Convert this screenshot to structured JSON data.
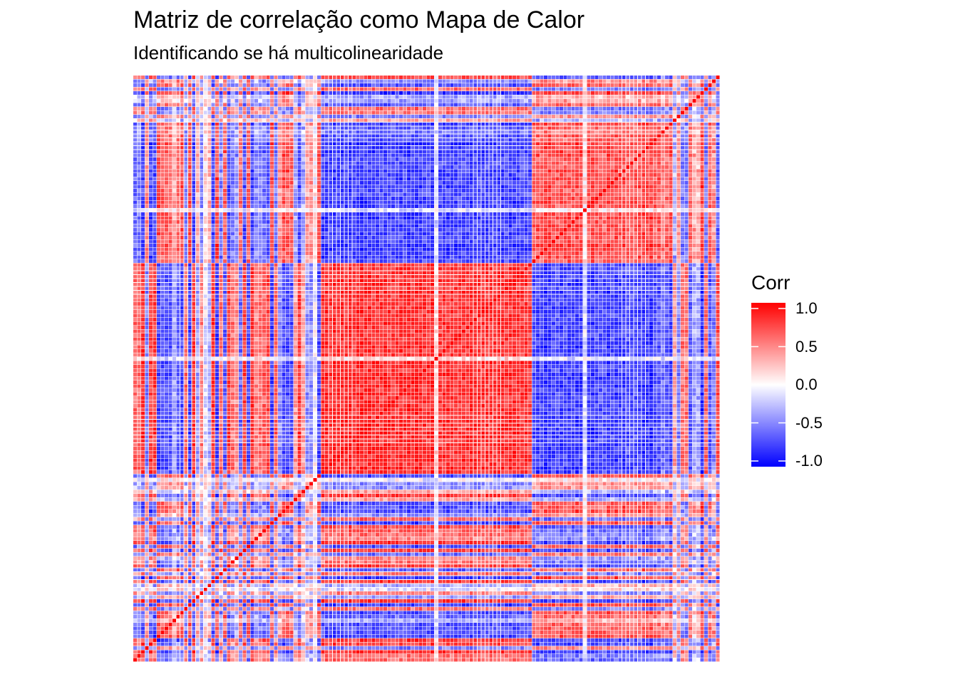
{
  "chart_data": {
    "type": "heatmap",
    "title": "Matriz de correlação como Mapa de Calor",
    "subtitle": "Identificando se há multicolinearidade",
    "xlabel": "",
    "ylabel": "",
    "n_variables": 150,
    "diagonal_value": 1.0,
    "value_range": [
      -1.0,
      1.0
    ],
    "grid": false,
    "legend": {
      "title": "Corr",
      "placement": "right",
      "ticks": [
        1.0,
        0.5,
        0.0,
        -0.5,
        -1.0
      ],
      "tick_labels": [
        "1.0",
        "0.5",
        "0.0",
        "-0.5",
        "-1.0"
      ]
    },
    "colors": {
      "low": "#0000ff",
      "mid": "#ffffff",
      "high": "#ff0000",
      "cell_border": "#ffffff"
    }
  }
}
